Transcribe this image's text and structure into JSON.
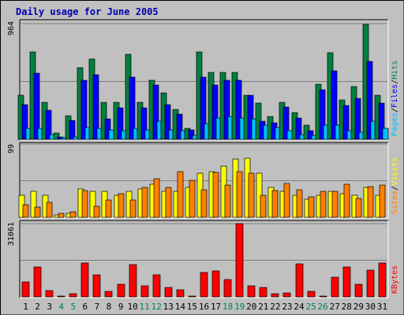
{
  "title": "Daily usage for June 2005",
  "chart_data": {
    "type": "bar",
    "days": [
      "1",
      "2",
      "3",
      "4",
      "5",
      "6",
      "7",
      "8",
      "9",
      "10",
      "11",
      "12",
      "13",
      "14",
      "15",
      "16",
      "17",
      "18",
      "19",
      "20",
      "21",
      "22",
      "23",
      "24",
      "25",
      "26",
      "27",
      "28",
      "29",
      "30",
      "31"
    ],
    "weekend_days": [
      "4",
      "5",
      "11",
      "12",
      "18",
      "19",
      "25",
      "26"
    ],
    "colors": {
      "hits": "#008040",
      "files": "#0000ff",
      "pages": "#00c0ff",
      "visits": "#ffff00",
      "sites": "#ff8000",
      "kbytes": "#ff0000",
      "day_normal": "#000000",
      "day_weekend": "#00805c",
      "title": "#0000b0"
    },
    "panels": [
      {
        "id": "hits-files-pages",
        "ymax_label": "964",
        "ymax": 964,
        "right_labels": [
          {
            "text": "Pages",
            "color": "#00c0ff"
          },
          {
            "text": "Files",
            "color": "#0000ff"
          },
          {
            "text": "Hits",
            "color": "#008040"
          }
        ],
        "series": [
          {
            "key": "hits",
            "values": [
              370,
              730,
              310,
              55,
              200,
              600,
              670,
              310,
              310,
              710,
              310,
              490,
              390,
              250,
              90,
              730,
              560,
              560,
              560,
              370,
              300,
              190,
              310,
              220,
              120,
              460,
              720,
              330,
              440,
              960,
              370
            ]
          },
          {
            "key": "files",
            "values": [
              290,
              550,
              240,
              20,
              160,
              490,
              540,
              170,
              260,
              520,
              260,
              450,
              290,
              210,
              80,
              520,
              450,
              490,
              490,
              370,
              150,
              140,
              270,
              180,
              70,
              410,
              570,
              280,
              340,
              650,
              300
            ]
          },
          {
            "key": "pages",
            "values": [
              90,
              90,
              40,
              15,
              20,
              100,
              90,
              80,
              70,
              90,
              80,
              150,
              80,
              70,
              30,
              130,
              180,
              190,
              180,
              170,
              120,
              100,
              70,
              40,
              30,
              120,
              120,
              70,
              60,
              150,
              90
            ]
          }
        ]
      },
      {
        "id": "visits-sites",
        "ymax_label": "99",
        "ymax": 99,
        "right_labels": [
          {
            "text": "Sites",
            "color": "#ff8000"
          },
          {
            "text": "Visits",
            "color": "#ffff00"
          }
        ],
        "series": [
          {
            "key": "visits",
            "values": [
              30,
              35,
              30,
              3,
              5,
              38,
              35,
              35,
              30,
              35,
              38,
              45,
              35,
              35,
              40,
              60,
              62,
              69,
              79,
              80,
              60,
              40,
              35,
              30,
              25,
              30,
              35,
              32,
              30,
              40,
              30
            ]
          },
          {
            "key": "sites",
            "values": [
              17,
              14,
              20,
              5,
              7,
              36,
              15,
              23,
              32,
              23,
              40,
              52,
              40,
              62,
              50,
              37,
              61,
              44,
              62,
              60,
              30,
              36,
              46,
              37,
              28,
              35,
              35,
              45,
              26,
              42,
              44
            ]
          }
        ]
      },
      {
        "id": "kbytes",
        "ymax_label": "31061",
        "ymax": 31061,
        "right_labels": [
          {
            "text": "KBytes",
            "color": "#ff0000"
          }
        ],
        "series": [
          {
            "key": "kbytes",
            "values": [
              6500,
              12600,
              2700,
              500,
              1300,
              14200,
              9300,
              2300,
              5300,
              13700,
              4800,
              9400,
              4100,
              3100,
              500,
              10500,
              11000,
              7300,
              31061,
              4600,
              3900,
              1500,
              1800,
              14000,
              2300,
              500,
              8200,
              12800,
              5300,
              11200,
              14300
            ]
          }
        ]
      }
    ]
  }
}
